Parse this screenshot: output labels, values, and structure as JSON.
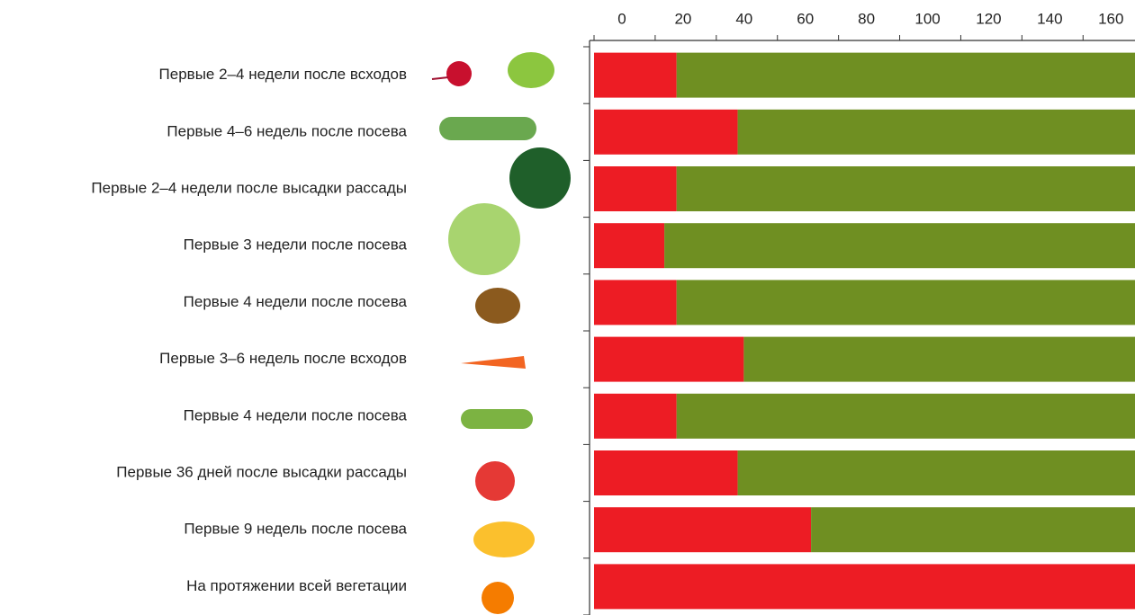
{
  "chart_data": {
    "type": "stacked-bar-horizontal",
    "categories": [
      "Первые 2–4 недели после всходов",
      "Первые 4–6 недель после посева",
      "Первые 2–4 недели после высадки рассады",
      "Первые 3 недели после посева",
      "Первые 4 недели после посева",
      "Первые 3–6 недель после всходов",
      "Первые 4 недели после посева",
      "Первые 36 дней после высадки рассады",
      "Первые 9 недель после посева",
      "На протяжении всей вегетации"
    ],
    "series": [
      {
        "color": "#ed1c24",
        "values": [
          27,
          47,
          27,
          23,
          27,
          49,
          27,
          47,
          71,
          177
        ]
      },
      {
        "color": "#6f8f22",
        "values": [
          150,
          130,
          150,
          154,
          150,
          128,
          150,
          130,
          106,
          0
        ]
      }
    ],
    "xlim": [
      0,
      177
    ],
    "xticks": [
      0,
      20,
      40,
      60,
      80,
      100,
      120,
      140,
      160
    ]
  }
}
